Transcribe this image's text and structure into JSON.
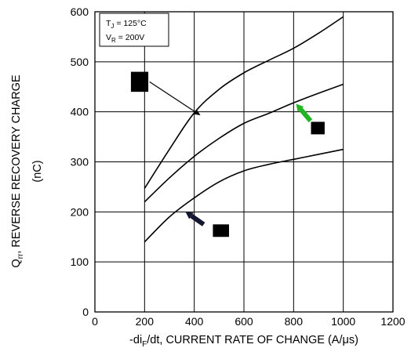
{
  "chart_data": {
    "type": "line",
    "title": "",
    "xlabel": "-diF/dt, CURRENT RATE OF CHANGE (A/μs)",
    "xlabel_parts": {
      "prefix": "-di",
      "sub": "F",
      "suffix": "/dt, CURRENT RATE OF CHANGE (A/μs)"
    },
    "ylabel": "Qrr, REVERSE RECOVERY CHARGE",
    "ylabel_parts": {
      "main": "Q",
      "sub": "rr",
      "suffix": ", REVERSE RECOVERY CHARGE"
    },
    "ylabel_unit": "(nC)",
    "xlim": [
      0,
      1200
    ],
    "ylim": [
      0,
      600
    ],
    "x_ticks": [
      "0",
      "200",
      "400",
      "600",
      "800",
      "1000",
      "1200"
    ],
    "y_ticks": [
      "0",
      "100",
      "200",
      "300",
      "400",
      "500",
      "600"
    ],
    "grid": true,
    "conditions": {
      "tj": {
        "main": "T",
        "sub": "J",
        "value": " = 125°C"
      },
      "vr": {
        "main": "V",
        "sub": "R",
        "value": " = 200V"
      }
    },
    "series": [
      {
        "x": [
          200,
          300,
          400,
          500,
          600,
          700,
          800,
          900,
          1000
        ],
        "values": [
          247,
          325,
          398,
          445,
          478,
          503,
          527,
          557,
          590
        ]
      },
      {
        "x": [
          200,
          300,
          400,
          500,
          600,
          700,
          800,
          900,
          1000
        ],
        "values": [
          220,
          268,
          311,
          347,
          377,
          397,
          418,
          437,
          455
        ]
      },
      {
        "x": [
          200,
          300,
          400,
          500,
          600,
          700,
          800,
          900,
          1000
        ],
        "values": [
          140,
          190,
          228,
          260,
          282,
          295,
          305,
          315,
          325
        ]
      }
    ],
    "annotations": [
      {
        "box": [
          145,
          480
        ],
        "box_size": [
          70,
          40
        ],
        "arrow_from": [
          220,
          460
        ],
        "arrow_to": [
          425,
          393
        ],
        "arrow_color": "#000000"
      },
      {
        "box": [
          870,
          380
        ],
        "box_size": [
          55,
          25
        ],
        "arrow_from": [
          868,
          382
        ],
        "arrow_to": [
          810,
          416
        ],
        "arrow_color": "#22b422"
      },
      {
        "box": [
          475,
          175
        ],
        "box_size": [
          65,
          25
        ],
        "arrow_from": [
          438,
          175
        ],
        "arrow_to": [
          365,
          200
        ],
        "arrow_color": "#141632"
      }
    ]
  }
}
